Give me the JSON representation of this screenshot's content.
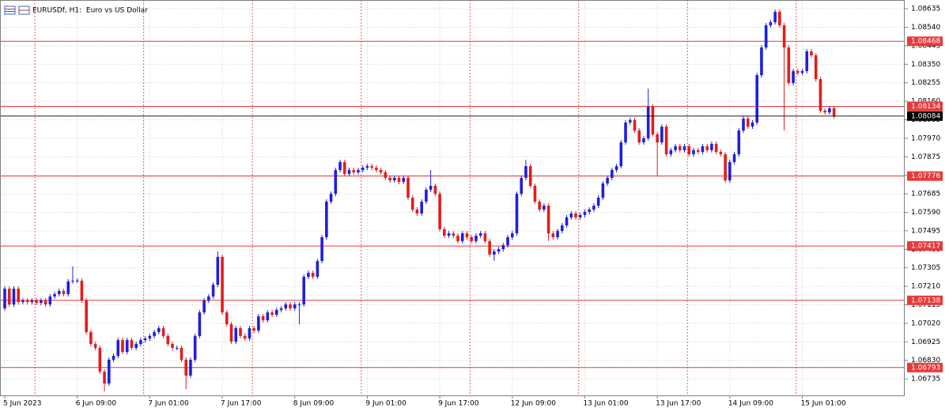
{
  "chart_data": {
    "type": "candlestick",
    "title": "EURUSDf, H1:  Euro vs US Dollar",
    "up_color": "#1f1fdc",
    "down_color": "#e31c1c",
    "grid": true,
    "hline_color": "#e8393a",
    "last_price_color": "#000000",
    "xlim": [
      -1.05,
      198.6
    ],
    "ylim": [
      1.0665,
      1.0868
    ],
    "yticks": [
      1.08635,
      {
        "value": 1.0854,
        "label": "1.08540"
      },
      1.08445,
      {
        "value": 1.0835,
        "label": "1.08350"
      },
      1.08255,
      {
        "value": 1.0816,
        "label": "1.08160"
      },
      1.08065,
      {
        "value": 1.0797,
        "label": "1.07970"
      },
      1.07875,
      {
        "value": 1.0778,
        "label": "1.07780"
      },
      1.07685,
      {
        "value": 1.0759,
        "label": "1.07590"
      },
      1.07495,
      {
        "value": 1.074,
        "label": "1.07400"
      },
      1.07305,
      {
        "value": 1.0721,
        "label": "1.07210"
      },
      1.07115,
      {
        "value": 1.0702,
        "label": "1.07020"
      },
      1.06925,
      {
        "value": 1.0683,
        "label": "1.06830"
      },
      1.06735
    ],
    "xticks": [
      {
        "value": 0,
        "label": "5 Jun 2023"
      },
      {
        "value": 16,
        "label": "6 Jun 09:00"
      },
      {
        "value": 32,
        "label": "7 Jun 01:00"
      },
      {
        "value": 48,
        "label": "7 Jun 17:00"
      },
      {
        "value": 64,
        "label": "8 Jun 09:00"
      },
      {
        "value": 80,
        "label": "9 Jun 01:00"
      },
      {
        "value": 96,
        "label": "9 Jun 17:00"
      },
      {
        "value": 112,
        "label": "12 Jun 09:00"
      },
      {
        "value": 128,
        "label": "13 Jun 01:00"
      },
      {
        "value": 144,
        "label": "13 Jun 17:00"
      },
      {
        "value": 160,
        "label": "14 Jun 09:00"
      },
      {
        "value": 176,
        "label": "15 Jun 01:00"
      }
    ],
    "period_separators": [
      7,
      31,
      55,
      79,
      103,
      127,
      151,
      175
    ],
    "hlines": [
      1.08468,
      1.08134,
      1.07776,
      1.07417,
      1.07138,
      1.06793
    ],
    "last_price": 1.08084,
    "ohlc": [
      [
        1.07097,
        1.0721,
        1.07085,
        1.07198
      ],
      [
        1.07198,
        1.0721,
        1.07105,
        1.07117
      ],
      [
        1.07117,
        1.0721,
        1.07105,
        1.07198
      ],
      [
        1.07198,
        1.0721,
        1.07117,
        1.07129
      ],
      [
        1.07129,
        1.07149,
        1.07117,
        1.07137
      ],
      [
        1.07137,
        1.07149,
        1.07117,
        1.07129
      ],
      [
        1.07129,
        1.07149,
        1.07117,
        1.07137
      ],
      [
        1.07137,
        1.07149,
        1.07113,
        1.07125
      ],
      [
        1.07125,
        1.07149,
        1.07113,
        1.07137
      ],
      [
        1.07137,
        1.07149,
        1.07105,
        1.07117
      ],
      [
        1.07117,
        1.0717,
        1.07105,
        1.07158
      ],
      [
        1.07158,
        1.07182,
        1.07146,
        1.0717
      ],
      [
        1.0717,
        1.07198,
        1.07158,
        1.07186
      ],
      [
        1.07186,
        1.07198,
        1.07158,
        1.0717
      ],
      [
        1.0717,
        1.07247,
        1.07158,
        1.07235
      ],
      [
        1.07235,
        1.07312,
        1.07223,
        1.07239
      ],
      [
        1.07239,
        1.07251,
        1.07227,
        1.07239
      ],
      [
        1.07239,
        1.07251,
        1.07125,
        1.07137
      ],
      [
        1.07137,
        1.07149,
        1.06963,
        1.06975
      ],
      [
        1.06975,
        1.06987,
        1.06902,
        1.06914
      ],
      [
        1.06914,
        1.06926,
        1.06882,
        1.06894
      ],
      [
        1.06894,
        1.06906,
        1.0676,
        1.06772
      ],
      [
        1.06772,
        1.06784,
        1.0667,
        1.06711
      ],
      [
        1.06711,
        1.06845,
        1.06699,
        1.06833
      ],
      [
        1.06833,
        1.06865,
        1.06821,
        1.06853
      ],
      [
        1.06853,
        1.06946,
        1.06841,
        1.06934
      ],
      [
        1.06934,
        1.06946,
        1.06861,
        1.06873
      ],
      [
        1.06873,
        1.06946,
        1.06861,
        1.06934
      ],
      [
        1.06934,
        1.06946,
        1.06882,
        1.06894
      ],
      [
        1.06894,
        1.06926,
        1.06882,
        1.06914
      ],
      [
        1.06914,
        1.06946,
        1.06902,
        1.06934
      ],
      [
        1.06934,
        1.06954,
        1.06922,
        1.06942
      ],
      [
        1.06942,
        1.06967,
        1.0693,
        1.06955
      ],
      [
        1.06955,
        1.06987,
        1.06943,
        1.06975
      ],
      [
        1.06975,
        1.07007,
        1.06963,
        1.06995
      ],
      [
        1.06995,
        1.07007,
        1.06943,
        1.06955
      ],
      [
        1.06955,
        1.06967,
        1.06902,
        1.06914
      ],
      [
        1.06914,
        1.06926,
        1.06882,
        1.06894
      ],
      [
        1.06894,
        1.06906,
        1.06882,
        1.06894
      ],
      [
        1.06894,
        1.06906,
        1.06821,
        1.06833
      ],
      [
        1.06833,
        1.06845,
        1.06683,
        1.06752
      ],
      [
        1.06752,
        1.06845,
        1.0674,
        1.06833
      ],
      [
        1.06833,
        1.06967,
        1.06821,
        1.06955
      ],
      [
        1.06955,
        1.07088,
        1.06943,
        1.07076
      ],
      [
        1.07076,
        1.07149,
        1.07064,
        1.07137
      ],
      [
        1.07137,
        1.0717,
        1.07125,
        1.07158
      ],
      [
        1.07158,
        1.0723,
        1.07146,
        1.07218
      ],
      [
        1.07218,
        1.07389,
        1.07206,
        1.07361
      ],
      [
        1.07361,
        1.07373,
        1.07064,
        1.07076
      ],
      [
        1.07076,
        1.07088,
        1.07003,
        1.07015
      ],
      [
        1.07015,
        1.07027,
        1.06914,
        1.06926
      ],
      [
        1.06926,
        1.07007,
        1.06914,
        1.06995
      ],
      [
        1.06995,
        1.07007,
        1.06943,
        1.06955
      ],
      [
        1.06955,
        1.06967,
        1.0693,
        1.06942
      ],
      [
        1.06942,
        1.07007,
        1.0693,
        1.06995
      ],
      [
        1.06995,
        1.07007,
        1.06971,
        1.06983
      ],
      [
        1.06983,
        1.07068,
        1.06971,
        1.07056
      ],
      [
        1.07056,
        1.07068,
        1.07024,
        1.07036
      ],
      [
        1.07036,
        1.07088,
        1.07024,
        1.07076
      ],
      [
        1.07076,
        1.07088,
        1.07052,
        1.07064
      ],
      [
        1.07064,
        1.07101,
        1.07052,
        1.07089
      ],
      [
        1.07089,
        1.07109,
        1.07077,
        1.07097
      ],
      [
        1.07097,
        1.07129,
        1.07085,
        1.07117
      ],
      [
        1.07117,
        1.07129,
        1.07085,
        1.07097
      ],
      [
        1.07097,
        1.07129,
        1.07085,
        1.07117
      ],
      [
        1.07117,
        1.07129,
        1.07015,
        1.07117
      ],
      [
        1.07117,
        1.07271,
        1.07105,
        1.07259
      ],
      [
        1.07259,
        1.07291,
        1.07247,
        1.07279
      ],
      [
        1.07279,
        1.07291,
        1.07247,
        1.07259
      ],
      [
        1.07259,
        1.07352,
        1.07247,
        1.0734
      ],
      [
        1.0734,
        1.07474,
        1.07328,
        1.07462
      ],
      [
        1.07462,
        1.07657,
        1.0745,
        1.07645
      ],
      [
        1.07645,
        1.07697,
        1.07633,
        1.07685
      ],
      [
        1.07685,
        1.07819,
        1.07673,
        1.07807
      ],
      [
        1.07807,
        1.0786,
        1.07795,
        1.07848
      ],
      [
        1.07848,
        1.0786,
        1.07775,
        1.07787
      ],
      [
        1.07787,
        1.07819,
        1.07775,
        1.07807
      ],
      [
        1.07807,
        1.07819,
        1.07783,
        1.07795
      ],
      [
        1.07795,
        1.07819,
        1.07783,
        1.07807
      ],
      [
        1.07807,
        1.07831,
        1.07795,
        1.07819
      ],
      [
        1.07819,
        1.07839,
        1.07807,
        1.07827
      ],
      [
        1.07827,
        1.07839,
        1.07807,
        1.07819
      ],
      [
        1.07819,
        1.07831,
        1.07795,
        1.07807
      ],
      [
        1.07807,
        1.07819,
        1.07783,
        1.07795
      ],
      [
        1.07795,
        1.07807,
        1.07755,
        1.07767
      ],
      [
        1.07767,
        1.07779,
        1.07742,
        1.07754
      ],
      [
        1.07754,
        1.07779,
        1.07742,
        1.07767
      ],
      [
        1.07767,
        1.07779,
        1.07734,
        1.07746
      ],
      [
        1.07746,
        1.07779,
        1.07734,
        1.07767
      ],
      [
        1.07767,
        1.07779,
        1.07653,
        1.07665
      ],
      [
        1.07665,
        1.07677,
        1.07592,
        1.07604
      ],
      [
        1.07604,
        1.07616,
        1.07572,
        1.07584
      ],
      [
        1.07584,
        1.07657,
        1.07572,
        1.07645
      ],
      [
        1.07645,
        1.07718,
        1.07633,
        1.07706
      ],
      [
        1.07706,
        1.07807,
        1.07694,
        1.07726
      ],
      [
        1.07726,
        1.07738,
        1.07673,
        1.07685
      ],
      [
        1.07685,
        1.07697,
        1.07491,
        1.07503
      ],
      [
        1.07503,
        1.07515,
        1.07458,
        1.0747
      ],
      [
        1.0747,
        1.07494,
        1.07458,
        1.07482
      ],
      [
        1.07482,
        1.07494,
        1.07458,
        1.0747
      ],
      [
        1.0747,
        1.07482,
        1.0743,
        1.07442
      ],
      [
        1.07442,
        1.07494,
        1.0743,
        1.07482
      ],
      [
        1.07482,
        1.07494,
        1.0745,
        1.07462
      ],
      [
        1.07462,
        1.07474,
        1.0743,
        1.07442
      ],
      [
        1.07442,
        1.07482,
        1.0743,
        1.0747
      ],
      [
        1.0747,
        1.07494,
        1.07458,
        1.07482
      ],
      [
        1.07482,
        1.07494,
        1.0743,
        1.07442
      ],
      [
        1.07442,
        1.07454,
        1.07361,
        1.07373
      ],
      [
        1.07373,
        1.07401,
        1.07341,
        1.07389
      ],
      [
        1.07389,
        1.07413,
        1.07377,
        1.07401
      ],
      [
        1.07401,
        1.07433,
        1.07389,
        1.07421
      ],
      [
        1.07421,
        1.07474,
        1.07409,
        1.07462
      ],
      [
        1.07462,
        1.07494,
        1.0745,
        1.07482
      ],
      [
        1.07482,
        1.07697,
        1.0747,
        1.07685
      ],
      [
        1.07685,
        1.07779,
        1.07673,
        1.07767
      ],
      [
        1.07767,
        1.0786,
        1.07755,
        1.07827
      ],
      [
        1.07827,
        1.07839,
        1.07714,
        1.07726
      ],
      [
        1.07726,
        1.07738,
        1.07633,
        1.07645
      ],
      [
        1.07645,
        1.07657,
        1.07592,
        1.07604
      ],
      [
        1.07604,
        1.07636,
        1.07592,
        1.07624
      ],
      [
        1.07624,
        1.07636,
        1.07442,
        1.07482
      ],
      [
        1.07482,
        1.07494,
        1.0745,
        1.07462
      ],
      [
        1.07462,
        1.07506,
        1.0745,
        1.07494
      ],
      [
        1.07494,
        1.07535,
        1.07482,
        1.07523
      ],
      [
        1.07523,
        1.07576,
        1.07511,
        1.07564
      ],
      [
        1.07564,
        1.07596,
        1.07552,
        1.07584
      ],
      [
        1.07584,
        1.07596,
        1.07552,
        1.07564
      ],
      [
        1.07564,
        1.07588,
        1.07552,
        1.07576
      ],
      [
        1.07576,
        1.07604,
        1.07564,
        1.07592
      ],
      [
        1.07592,
        1.07616,
        1.0758,
        1.07604
      ],
      [
        1.07604,
        1.07636,
        1.07592,
        1.07624
      ],
      [
        1.07624,
        1.07677,
        1.07612,
        1.07665
      ],
      [
        1.07665,
        1.0775,
        1.07653,
        1.07738
      ],
      [
        1.07738,
        1.07779,
        1.07726,
        1.07767
      ],
      [
        1.07767,
        1.07819,
        1.07755,
        1.07807
      ],
      [
        1.07807,
        1.07839,
        1.07795,
        1.07827
      ],
      [
        1.07827,
        1.07961,
        1.07815,
        1.07949
      ],
      [
        1.07949,
        1.08063,
        1.07937,
        1.08051
      ],
      [
        1.08051,
        1.08075,
        1.08039,
        1.08063
      ],
      [
        1.08063,
        1.08075,
        1.07998,
        1.0801
      ],
      [
        1.0801,
        1.08022,
        1.07937,
        1.07949
      ],
      [
        1.07949,
        1.07982,
        1.07937,
        1.0797
      ],
      [
        1.0797,
        1.08225,
        1.07958,
        1.08132
      ],
      [
        1.08132,
        1.08144,
        1.07978,
        1.0799
      ],
      [
        1.0799,
        1.08002,
        1.07775,
        1.07949
      ],
      [
        1.07949,
        1.08042,
        1.07937,
        1.0803
      ],
      [
        1.0803,
        1.08042,
        1.07876,
        1.07888
      ],
      [
        1.07888,
        1.07921,
        1.07876,
        1.07909
      ],
      [
        1.07909,
        1.07941,
        1.07897,
        1.07929
      ],
      [
        1.07929,
        1.07941,
        1.07897,
        1.07909
      ],
      [
        1.07909,
        1.07941,
        1.07897,
        1.07929
      ],
      [
        1.07929,
        1.07941,
        1.07876,
        1.07888
      ],
      [
        1.07888,
        1.07921,
        1.07876,
        1.07909
      ],
      [
        1.07909,
        1.07921,
        1.07888,
        1.079
      ],
      [
        1.079,
        1.07941,
        1.07888,
        1.07929
      ],
      [
        1.07929,
        1.07941,
        1.07897,
        1.07909
      ],
      [
        1.07909,
        1.07953,
        1.07897,
        1.07941
      ],
      [
        1.07941,
        1.07953,
        1.07888,
        1.079
      ],
      [
        1.079,
        1.07912,
        1.07876,
        1.07888
      ],
      [
        1.07888,
        1.079,
        1.07742,
        1.07754
      ],
      [
        1.07754,
        1.0786,
        1.07742,
        1.07848
      ],
      [
        1.07848,
        1.079,
        1.07836,
        1.07888
      ],
      [
        1.07888,
        1.08022,
        1.07876,
        1.0801
      ],
      [
        1.0801,
        1.08083,
        1.07998,
        1.08071
      ],
      [
        1.08071,
        1.08083,
        1.08018,
        1.0803
      ],
      [
        1.0803,
        1.08063,
        1.08018,
        1.08051
      ],
      [
        1.08051,
        1.08306,
        1.08039,
        1.08294
      ],
      [
        1.08294,
        1.08448,
        1.08282,
        1.08436
      ],
      [
        1.08436,
        1.08562,
        1.08424,
        1.0855
      ],
      [
        1.0855,
        1.08578,
        1.08538,
        1.08566
      ],
      [
        1.08566,
        1.08631,
        1.08554,
        1.08619
      ],
      [
        1.08619,
        1.08631,
        1.08538,
        1.0855
      ],
      [
        1.0855,
        1.08562,
        1.0801,
        1.08436
      ],
      [
        1.08436,
        1.08448,
        1.08242,
        1.08254
      ],
      [
        1.08254,
        1.08327,
        1.08242,
        1.08315
      ],
      [
        1.08315,
        1.08327,
        1.08294,
        1.08306
      ],
      [
        1.08306,
        1.08327,
        1.08294,
        1.08315
      ],
      [
        1.08315,
        1.08428,
        1.08303,
        1.08416
      ],
      [
        1.08416,
        1.08428,
        1.08384,
        1.08396
      ],
      [
        1.08396,
        1.08408,
        1.08262,
        1.08274
      ],
      [
        1.08274,
        1.08286,
        1.081,
        1.08112
      ],
      [
        1.08112,
        1.08124,
        1.08091,
        1.08103
      ],
      [
        1.08103,
        1.08136,
        1.08091,
        1.08124
      ],
      [
        1.08124,
        1.08136,
        1.08072,
        1.08084
      ]
    ]
  }
}
